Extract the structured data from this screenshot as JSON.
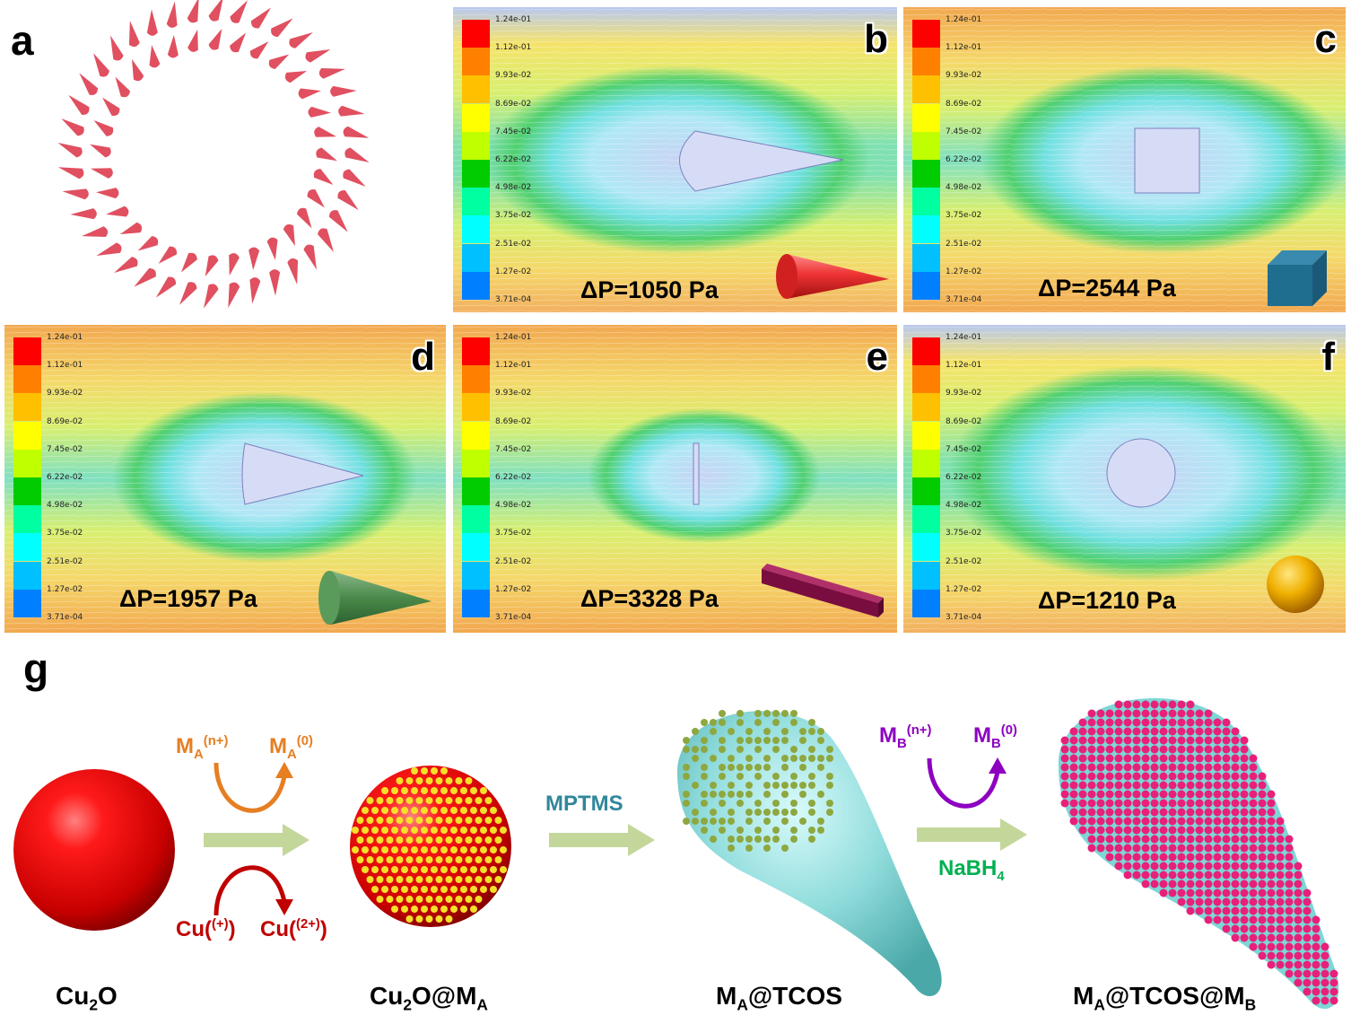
{
  "panels": {
    "a": {
      "letter": "a"
    },
    "b": {
      "letter": "b",
      "pressure": "ΔP=1050 Pa",
      "shape": "cone-horizontal-red"
    },
    "c": {
      "letter": "c",
      "pressure": "ΔP=2544 Pa",
      "shape": "cube"
    },
    "d": {
      "letter": "d",
      "pressure": "ΔP=1957 Pa",
      "shape": "cone-green"
    },
    "e": {
      "letter": "e",
      "pressure": "ΔP=3328 Pa",
      "shape": "rod"
    },
    "f": {
      "letter": "f",
      "pressure": "ΔP=1210 Pa",
      "shape": "sphere"
    },
    "g": {
      "letter": "g"
    }
  },
  "legend": {
    "labels": [
      "1.24e-01",
      "1.12e-01",
      "9.93e-02",
      "8.69e-02",
      "7.45e-02",
      "6.22e-02",
      "4.98e-02",
      "3.75e-02",
      "2.51e-02",
      "1.27e-02",
      "3.71e-04"
    ],
    "colors": [
      "#ff0000",
      "#ff8000",
      "#ffc000",
      "#ffff00",
      "#c0ff00",
      "#00cc00",
      "#00ffa0",
      "#00ffff",
      "#00c0ff",
      "#0080ff",
      "#0000ff"
    ]
  },
  "scheme": {
    "step1": {
      "top_left": "M",
      "top_left_sub": "A",
      "top_left_sup": "(n+)",
      "top_right": "M",
      "top_right_sub": "A",
      "top_right_sup": "(0)",
      "bottom_left": "Cu",
      "bottom_left_sup": "(+)",
      "bottom_right": "Cu",
      "bottom_right_sup": "(2+)"
    },
    "step2": {
      "label": "MPTMS"
    },
    "step3": {
      "top_left": "M",
      "top_left_sub": "B",
      "top_left_sup": "(n+)",
      "top_right": "M",
      "top_right_sub": "B",
      "top_right_sup": "(0)",
      "reagent": "NaBH",
      "reagent_sub": "4"
    },
    "products": [
      {
        "main": "Cu",
        "sub1": "2",
        "rest": "O",
        "sub2": "",
        "after": ""
      },
      {
        "main": "Cu",
        "sub1": "2",
        "rest": "O@M",
        "sub2": "A",
        "after": ""
      },
      {
        "main": "M",
        "sub1": "A",
        "rest": "@TCOS",
        "sub2": "",
        "after": ""
      },
      {
        "main": "M",
        "sub1": "A",
        "rest": "@TCOS@M",
        "sub2": "B",
        "after": ""
      }
    ],
    "colors": {
      "orange": "#e67e22",
      "darkred": "#c00000",
      "teal": "#31869b",
      "purple": "#8e00c0",
      "green": "#00b050",
      "arrow": "#c4d79b"
    }
  }
}
